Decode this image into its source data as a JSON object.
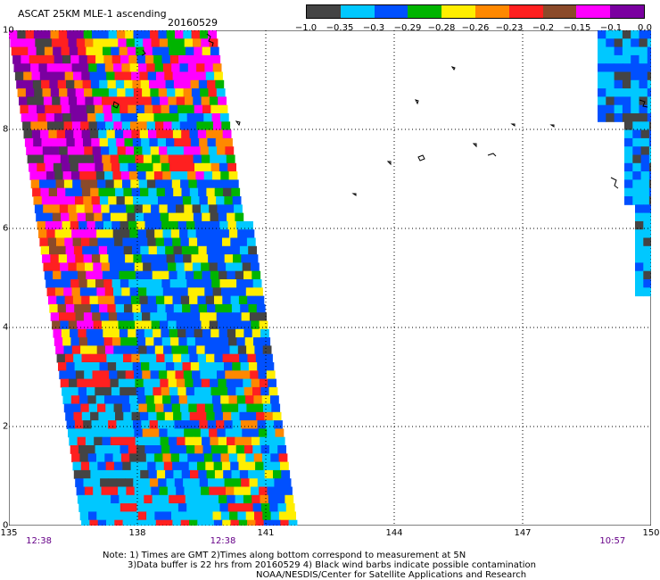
{
  "title": "ASCAT 25KM MLE-1 ascending",
  "date": "20160529",
  "legend": {
    "colors": [
      "#444444",
      "#00c8ff",
      "#0050ff",
      "#00b400",
      "#ffee00",
      "#ff8800",
      "#ff2020",
      "#8b4a2a",
      "#ff00ff",
      "#7a00a0"
    ],
    "labels": [
      "−1.0",
      "−0.35",
      "−0.3",
      "−0.29",
      "−0.28",
      "−0.26",
      "−0.23",
      "−0.2",
      "−0.15",
      "−0.1",
      "0.0"
    ]
  },
  "axes": {
    "lat_ticks": [
      "0",
      "2",
      "4",
      "6",
      "8",
      "10"
    ],
    "lon_ticks": [
      "135",
      "138",
      "141",
      "144",
      "147",
      "150"
    ],
    "lat_range": [
      0,
      10
    ],
    "lon_range": [
      135,
      150
    ],
    "grid": "dotted"
  },
  "times": [
    {
      "lon": 135.7,
      "label": "12:38"
    },
    {
      "lon": 140.0,
      "label": "12:38"
    },
    {
      "lon": 149.1,
      "label": "10:57"
    }
  ],
  "notes": [
    "Note: 1) Times are GMT 2)Times along bottom correspond to measurement at 5N",
    "3)Data buffer is 22 hrs from 20160529 4) Black wind barbs indicate possible contamination",
    "NOAA/NESDIS/Center for Satellite Applications and Research"
  ]
}
